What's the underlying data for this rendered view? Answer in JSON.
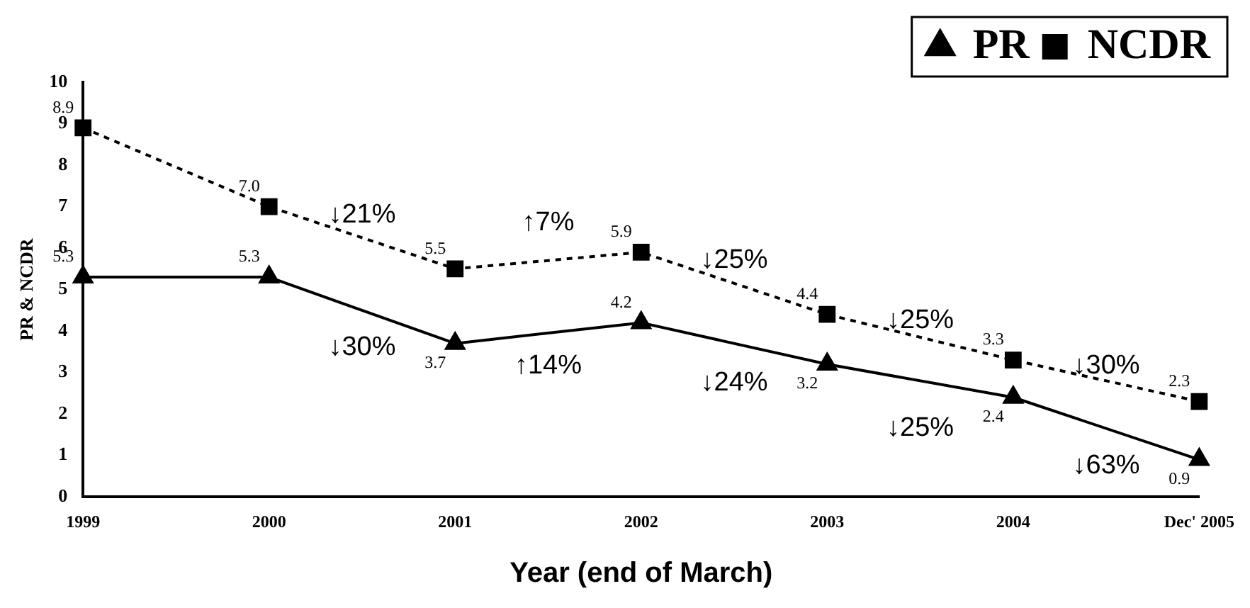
{
  "chart_data": {
    "type": "line",
    "xlabel": "Year (end of March)",
    "ylabel": "PR & NCDR",
    "categories": [
      "1999",
      "2000",
      "2001",
      "2002",
      "2003",
      "2004",
      "Dec' 2005"
    ],
    "series": [
      {
        "name": "PR",
        "color": "#000000",
        "marker": "triangle",
        "line_style": "solid",
        "values": [
          5.3,
          5.3,
          3.7,
          4.2,
          3.2,
          2.4,
          0.9
        ],
        "value_labels": [
          "5.3",
          "5.3",
          "3.7",
          "4.2",
          "3.2",
          "2.4",
          "0.9"
        ]
      },
      {
        "name": "NCDR",
        "color": "#000000",
        "marker": "square",
        "line_style": "dashed",
        "values": [
          8.9,
          7.0,
          5.5,
          5.9,
          4.4,
          3.3,
          2.3
        ],
        "value_labels": [
          "8.9",
          "7.0",
          "5.5",
          "5.9",
          "4.4",
          "3.3",
          "2.3"
        ]
      }
    ],
    "ylim": [
      0,
      10
    ],
    "yticks": [
      0,
      1,
      2,
      3,
      4,
      5,
      6,
      7,
      8,
      9,
      10
    ],
    "grid": false,
    "legend": "top right",
    "annotations": [
      "↓21%",
      "↑7%",
      "↓25%",
      "↓25%",
      "↓30%",
      "↓30%",
      "↑14%",
      "↓24%",
      "↓25%",
      "↓63%"
    ]
  }
}
